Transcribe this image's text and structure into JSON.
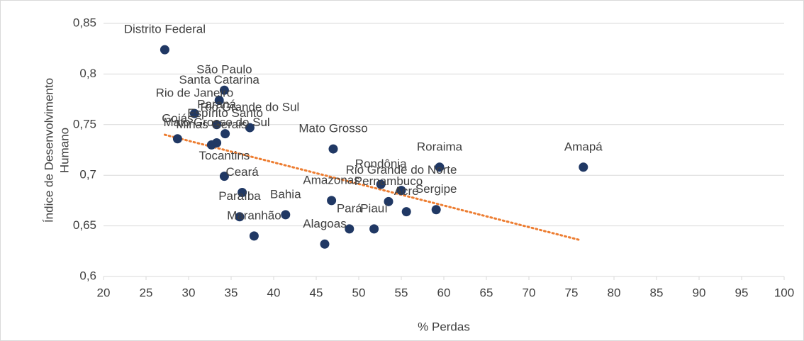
{
  "chart_data": {
    "type": "scatter",
    "xlabel": "% Perdas",
    "ylabel_lines": [
      "Índice de Desenvolvimento",
      "Humano"
    ],
    "labels": [
      "Distrito Federal",
      "São Paulo",
      "Santa Catarina",
      "Rio de Janeiro",
      "Paraná",
      "Espírito Santo",
      "Rio Grande do Sul",
      "Goiás",
      "Mato Grosso do Sul",
      "Minas Gerais",
      "Tocantins",
      "Ceará",
      "Paraíba",
      "Bahia",
      "Maranhão",
      "Mato Grosso",
      "Amazonas",
      "Pará",
      "Alagoas",
      "Piauí",
      "Rondônia",
      "Rio Grande do Norte",
      "Pernambuco",
      "Acre",
      "Sergipe",
      "Roraima",
      "Amapá"
    ],
    "x": [
      27.2,
      34.2,
      33.6,
      30.7,
      33.3,
      34.3,
      37.2,
      28.7,
      33.3,
      32.7,
      34.2,
      36.3,
      36.0,
      41.4,
      37.7,
      47.0,
      46.8,
      48.9,
      46.0,
      51.8,
      52.6,
      55.0,
      53.5,
      55.6,
      59.1,
      59.5,
      76.4
    ],
    "y": [
      0.824,
      0.784,
      0.774,
      0.761,
      0.75,
      0.741,
      0.747,
      0.736,
      0.732,
      0.73,
      0.699,
      0.683,
      0.659,
      0.661,
      0.64,
      0.726,
      0.675,
      0.647,
      0.632,
      0.647,
      0.691,
      0.685,
      0.674,
      0.664,
      0.666,
      0.708,
      0.708
    ],
    "color": "#203864",
    "trendline": {
      "x": [
        27.2,
        76.0
      ],
      "y": [
        0.74,
        0.636
      ],
      "color": "#ed7d31"
    },
    "xlim": [
      20,
      100
    ],
    "xticks": [
      20,
      25,
      30,
      35,
      40,
      45,
      50,
      55,
      60,
      65,
      70,
      75,
      80,
      85,
      90,
      95,
      100
    ],
    "ylim": [
      0.6,
      0.85
    ],
    "yticks": [
      {
        "value": 0.6,
        "label": "0,6"
      },
      {
        "value": 0.65,
        "label": "0,65"
      },
      {
        "value": 0.7,
        "label": "0,7"
      },
      {
        "value": 0.75,
        "label": "0,75"
      },
      {
        "value": 0.8,
        "label": "0,8"
      },
      {
        "value": 0.85,
        "label": "0,85"
      }
    ],
    "grid": true
  }
}
